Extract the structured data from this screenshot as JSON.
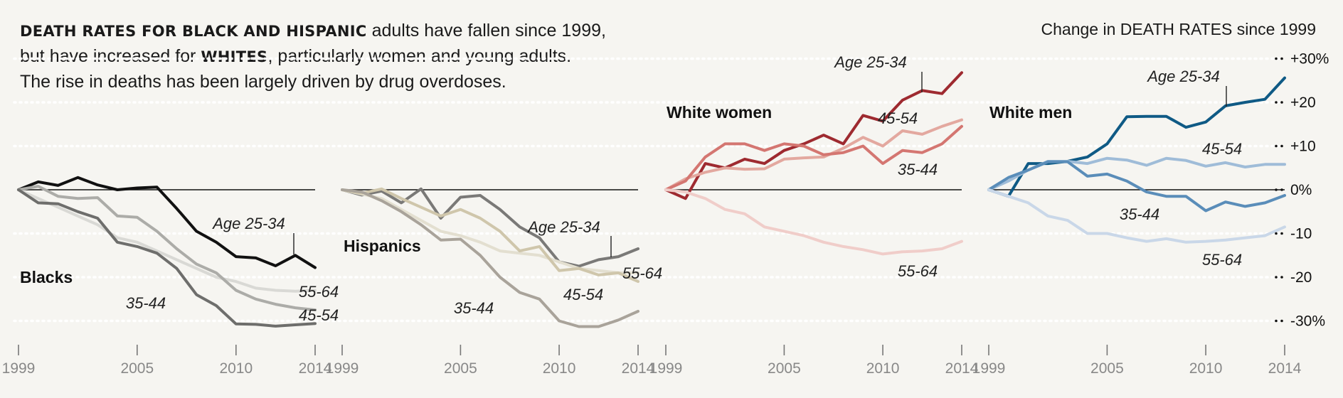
{
  "headline": {
    "bold1": "DEATH RATES FOR BLACK AND HISPANIC",
    "text1": " adults have fallen since 1999,",
    "text2": "but have increased for ",
    "bold2": "WHITES",
    "text3": ", particularly women and young adults.",
    "text4": "The rise in deaths has been largely driven by drug overdoses."
  },
  "axis_caption": "Change in DEATH RATES since 1999",
  "chart_data": {
    "type": "line",
    "x_ticks": [
      1999,
      2005,
      2010,
      2014
    ],
    "x_range": [
      1999,
      2014
    ],
    "y_range": [
      -30,
      30
    ],
    "y_ticks": [
      {
        "value": 30,
        "label": "+30%"
      },
      {
        "value": 20,
        "label": "+20"
      },
      {
        "value": 10,
        "label": "+10"
      },
      {
        "value": 0,
        "label": "0%"
      },
      {
        "value": -10,
        "label": "-10"
      },
      {
        "value": -20,
        "label": "-20"
      },
      {
        "value": -30,
        "label": "-30%"
      }
    ],
    "panels": [
      {
        "title": "Blacks",
        "series": [
          {
            "name": "Age 25-34",
            "color": "#111111",
            "values": [
              0,
              1.8,
              1,
              2.8,
              1.1,
              0,
              0.4,
              0.6,
              -4.3,
              -9.5,
              -12,
              -15.3,
              -15.6,
              -17.4,
              -15,
              -17.8
            ]
          },
          {
            "name": "55-64",
            "color": "#d9d9d5",
            "values": [
              0,
              -2,
              -4,
              -6,
              -8,
              -11,
              -12,
              -14,
              -16,
              -18,
              -20,
              -21,
              -22.5,
              -23,
              -23.2,
              -23
            ]
          },
          {
            "name": "45-54",
            "color": "#acaca8",
            "values": [
              0,
              0.8,
              -1.5,
              -2,
              -1.8,
              -6,
              -6.3,
              -9.5,
              -13.5,
              -17,
              -19,
              -23,
              -25,
              -26.2,
              -27,
              -27.5
            ]
          },
          {
            "name": "35-44",
            "color": "#6e6e6c",
            "values": [
              0,
              -3,
              -3.2,
              -5,
              -6.5,
              -12,
              -13,
              -14.5,
              -18,
              -24,
              -26.5,
              -30.7,
              -30.8,
              -31.2,
              -30.9,
              -30.6
            ]
          }
        ]
      },
      {
        "title": "Hispanics",
        "series": [
          {
            "name": "Age 25-34",
            "color": "#7a7977",
            "values": [
              0,
              -1.2,
              -0.3,
              -3,
              0.2,
              -6.5,
              -1.7,
              -1.3,
              -4.5,
              -8.5,
              -11,
              -16.5,
              -17.5,
              -16,
              -15.3,
              -13.5
            ]
          },
          {
            "name": "55-64",
            "color": "#e3dfd0",
            "values": [
              0,
              -1,
              -2,
              -4.5,
              -7,
              -9.5,
              -10.5,
              -12,
              -14,
              -14.5,
              -15,
              -16.5,
              -18,
              -18.5,
              -19,
              -19
            ]
          },
          {
            "name": "45-54",
            "color": "#cfc6ab",
            "values": [
              0,
              -0.8,
              0.2,
              -2,
              -4,
              -6,
              -4.5,
              -6.5,
              -9.5,
              -14,
              -13,
              -18.5,
              -18,
              -19.5,
              -19,
              -21
            ]
          },
          {
            "name": "35-44",
            "color": "#a9a39a",
            "values": [
              0,
              -0.5,
              -2.5,
              -5,
              -8,
              -11.5,
              -11.3,
              -15,
              -20,
              -23.5,
              -25,
              -30,
              -31.3,
              -31.3,
              -29.8,
              -27.8
            ]
          }
        ]
      },
      {
        "title": "White women",
        "series": [
          {
            "name": "Age 25-34",
            "color": "#9e2a30",
            "values": [
              0,
              -2,
              6,
              5,
              7,
              6,
              9,
              10.5,
              12.5,
              10.5,
              17,
              15.7,
              20.5,
              22.7,
              22,
              26.8
            ]
          },
          {
            "name": "45-54",
            "color": "#e3a89f",
            "values": [
              0,
              2.5,
              4,
              5,
              4.7,
              4.8,
              7,
              7.3,
              7.5,
              9.5,
              12,
              10,
              13.5,
              12.7,
              14.5,
              16
            ]
          },
          {
            "name": "35-44",
            "color": "#d47671",
            "values": [
              0,
              2,
              7.5,
              10.5,
              10.5,
              9,
              10.5,
              10,
              8,
              8.5,
              10,
              6,
              9,
              8.5,
              10.5,
              14.5
            ]
          },
          {
            "name": "55-64",
            "color": "#f0cdc9",
            "values": [
              0,
              -0.5,
              -2,
              -4.5,
              -5.5,
              -8.5,
              -9.5,
              -10.5,
              -12,
              -13,
              -13.7,
              -14.7,
              -14.2,
              -14,
              -13.5,
              -11.8
            ]
          }
        ]
      },
      {
        "title": "White men",
        "series": [
          {
            "name": "Age 25-34",
            "color": "#0f5a85",
            "values": [
              0,
              -1.5,
              6,
              6,
              6.5,
              7.5,
              10.5,
              16.7,
              16.8,
              16.8,
              14.3,
              15.5,
              19.2,
              20,
              20.7,
              25.6
            ]
          },
          {
            "name": "45-54",
            "color": "#9fbcd8",
            "values": [
              0,
              2,
              4.5,
              6.5,
              6.5,
              6,
              7.2,
              6.8,
              5.6,
              7.2,
              6.7,
              5.4,
              6.2,
              5.2,
              5.8,
              5.8
            ]
          },
          {
            "name": "35-44",
            "color": "#5a8db9",
            "values": [
              0,
              2.8,
              4.5,
              6.4,
              6.4,
              3.1,
              3.6,
              2,
              -0.5,
              -1.5,
              -1.5,
              -4.8,
              -2.8,
              -3.8,
              -3,
              -1.3
            ]
          },
          {
            "name": "55-64",
            "color": "#c9d7e8",
            "values": [
              0,
              -1.5,
              -3,
              -6,
              -7,
              -10,
              -10,
              -11,
              -11.8,
              -11.2,
              -12,
              -11.8,
              -11.5,
              -11,
              -10.5,
              -8.5
            ]
          }
        ]
      }
    ]
  }
}
